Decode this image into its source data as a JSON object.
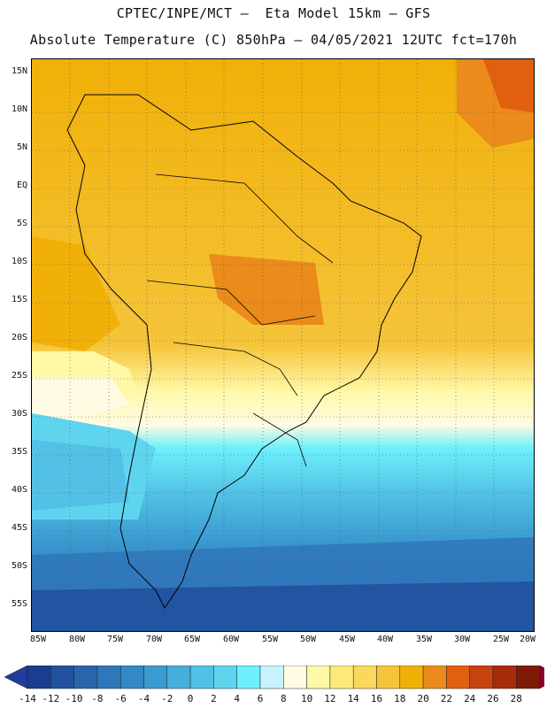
{
  "header": {
    "line1": "CPTEC/INPE/MCT –  Eta Model 15km – GFS",
    "line2": "Absolute Temperature (C) 850hPa – 04/05/2021 12UTC fct=170h"
  },
  "map": {
    "lat_labels": [
      "15N",
      "10N",
      "5N",
      "EQ",
      "5S",
      "10S",
      "15S",
      "20S",
      "25S",
      "30S",
      "35S",
      "40S",
      "45S",
      "50S",
      "55S"
    ],
    "lon_labels": [
      "85W",
      "80W",
      "75W",
      "70W",
      "65W",
      "60W",
      "55W",
      "50W",
      "45W",
      "40W",
      "35W",
      "30W",
      "25W",
      "20W"
    ],
    "lon_range": [
      -85,
      -20
    ],
    "lat_range": [
      -58,
      17
    ],
    "grid": true
  },
  "colorbar": {
    "labels": [
      "-14",
      "-12",
      "-10",
      "-8",
      "-6",
      "-4",
      "-2",
      "0",
      "2",
      "4",
      "6",
      "8",
      "10",
      "12",
      "14",
      "16",
      "18",
      "20",
      "22",
      "24",
      "26",
      "28"
    ],
    "colors": [
      "#1a3d8f",
      "#21519f",
      "#2a64ad",
      "#2f77ba",
      "#3389c5",
      "#3b9bd0",
      "#47afdc",
      "#52c1e5",
      "#5fd4ef",
      "#6df0fb",
      "#c6f3ff",
      "#fffbe3",
      "#fff8a6",
      "#fde97b",
      "#f9d85c",
      "#f5c43a",
      "#f1b008",
      "#ea8b1b",
      "#e0600f",
      "#c5430f",
      "#a82b0a",
      "#7f1a08"
    ],
    "under_color": "#1f3d9a",
    "over_color": "#8c0029"
  }
}
